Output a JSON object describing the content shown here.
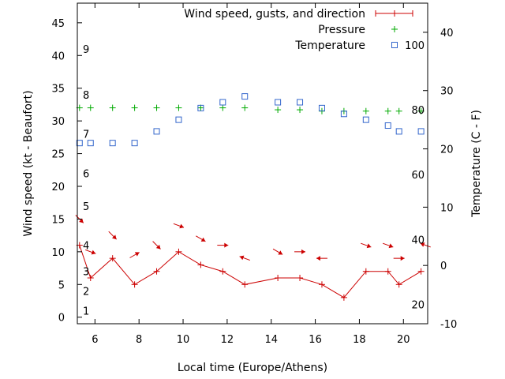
{
  "chart_data": {
    "type": "line",
    "title": "",
    "xlabel": "Local time (Europe/Athens)",
    "ylabel": "Wind speed (kt - Beaufort)",
    "y2label": "Temperature (C - F)",
    "xlim": [
      5.2,
      21.1
    ],
    "ylim": [
      -1,
      48
    ],
    "y2lim": [
      -10,
      45
    ],
    "x_ticks": [
      6,
      8,
      10,
      12,
      14,
      16,
      18,
      20
    ],
    "y_ticks": [
      0,
      5,
      10,
      15,
      20,
      25,
      30,
      35,
      40,
      45
    ],
    "y2_ticks": [
      -10,
      0,
      10,
      20,
      30,
      40
    ],
    "beaufort_labels": [
      {
        "label": "1",
        "y": 1
      },
      {
        "label": "2",
        "y": 4
      },
      {
        "label": "3",
        "y": 7
      },
      {
        "label": "4",
        "y": 11
      },
      {
        "label": "5",
        "y": 17
      },
      {
        "label": "6",
        "y": 22
      },
      {
        "label": "7",
        "y": 28
      },
      {
        "label": "8",
        "y": 34
      },
      {
        "label": "9",
        "y": 41
      }
    ],
    "fahrenheit_labels": [
      {
        "label": "20",
        "y2": -6.7
      },
      {
        "label": "40",
        "y2": 4.4
      },
      {
        "label": "60",
        "y2": 15.6
      },
      {
        "label": "80",
        "y2": 26.7
      },
      {
        "label": "100",
        "y2": 37.8
      }
    ],
    "grid": false,
    "legend_position": "top-right",
    "series": [
      {
        "name": "Wind speed, gusts, and direction",
        "color": "#cc0000",
        "axis": "y",
        "marker": "plus",
        "x": [
          5.3,
          5.8,
          6.8,
          7.8,
          8.8,
          9.8,
          10.8,
          11.8,
          12.8,
          14.3,
          15.3,
          16.3,
          17.3,
          18.3,
          19.3,
          19.8,
          20.8
        ],
        "y": [
          11,
          6,
          9,
          5,
          7,
          10,
          8,
          7,
          5,
          6,
          6,
          5,
          3,
          7,
          7,
          5,
          7
        ],
        "direction_arrows": {
          "x": [
            5.3,
            5.8,
            6.8,
            7.8,
            8.8,
            9.8,
            10.8,
            11.8,
            12.8,
            14.3,
            15.3,
            16.3,
            18.3,
            19.3,
            19.8,
            21.0
          ],
          "y": [
            15,
            10,
            12.5,
            9.5,
            11,
            14,
            12,
            11,
            9,
            10,
            10,
            9,
            11,
            11,
            9,
            11
          ],
          "angle_deg": [
            45,
            20,
            45,
            -30,
            45,
            20,
            30,
            0,
            200,
            30,
            0,
            180,
            20,
            20,
            0,
            200
          ]
        }
      },
      {
        "name": "Pressure",
        "color": "#00aa00",
        "axis": "y",
        "marker": "plus",
        "x": [
          5.3,
          5.8,
          6.8,
          7.8,
          8.8,
          9.8,
          10.8,
          11.8,
          12.8,
          14.3,
          15.3,
          16.3,
          17.3,
          18.3,
          19.3,
          19.8,
          20.8
        ],
        "y": [
          32,
          32,
          32,
          32,
          32,
          32,
          32,
          32,
          32,
          31.7,
          31.7,
          31.5,
          31.5,
          31.5,
          31.5,
          31.5,
          31.5
        ]
      },
      {
        "name": "Temperature",
        "color": "#3366cc",
        "axis": "y2",
        "marker": "square",
        "x": [
          5.3,
          5.8,
          6.8,
          7.8,
          8.8,
          9.8,
          10.8,
          11.8,
          12.8,
          14.3,
          15.3,
          16.3,
          17.3,
          18.3,
          19.3,
          19.8,
          20.8
        ],
        "y": [
          21,
          21,
          21,
          21,
          23,
          25,
          27,
          28,
          29,
          28,
          28,
          27,
          26,
          25,
          24,
          23,
          23
        ]
      }
    ]
  }
}
